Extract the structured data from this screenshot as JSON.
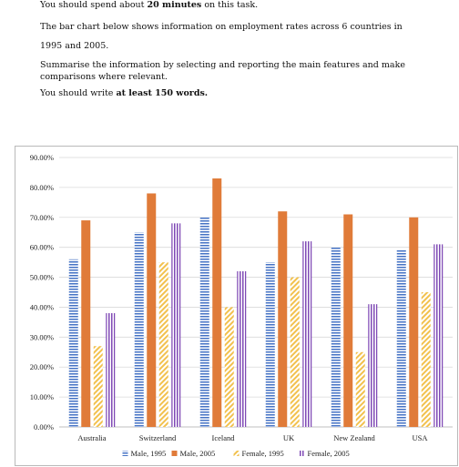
{
  "instructions": {
    "line1_pre": "You should spend about ",
    "line1_bold": "20 minutes",
    "line1_post": " on this task.",
    "line2": "The bar chart below shows information on employment rates across 6 countries in",
    "line3": "1995 and 2005.",
    "line4": "Summarise the information by selecting and reporting the main features and make",
    "line5": "comparisons where relevant.",
    "line6_pre": "You should write ",
    "line6_bold": "at least 150 words."
  },
  "chart_data": {
    "type": "bar",
    "categories": [
      "Australia",
      "Switzerland",
      "Iceland",
      "UK",
      "New Zealand",
      "USA"
    ],
    "series": [
      {
        "name": "Male, 1995",
        "values": [
          56,
          65,
          70,
          55,
          60,
          59
        ],
        "color": "#4472c4",
        "pattern": "horizontal-lines"
      },
      {
        "name": "Male, 2005",
        "values": [
          69,
          78,
          83,
          72,
          71,
          70
        ],
        "color": "#e07b39",
        "pattern": "solid"
      },
      {
        "name": "Female, 1995",
        "values": [
          27,
          55,
          40,
          50,
          25,
          45
        ],
        "color": "#f2c14e",
        "pattern": "diagonal-lines"
      },
      {
        "name": "Female, 2005",
        "values": [
          38,
          68,
          52,
          62,
          41,
          61
        ],
        "color": "#7f49b5",
        "pattern": "vertical-lines"
      }
    ],
    "ylim": [
      0,
      90
    ],
    "yticks": [
      "0.00%",
      "10.00%",
      "20.00%",
      "30.00%",
      "40.00%",
      "50.00%",
      "60.00%",
      "70.00%",
      "80.00%",
      "90.00%"
    ],
    "grid": true,
    "legend_position": "bottom",
    "xlabel": "",
    "ylabel": ""
  }
}
